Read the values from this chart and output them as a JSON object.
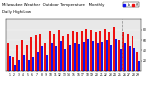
{
  "title": "Milwaukee Weather  Outdoor Temperature   Monthly",
  "days": [
    1,
    2,
    3,
    4,
    5,
    6,
    7,
    8,
    9,
    10,
    11,
    12,
    13,
    14,
    15,
    16,
    17,
    18,
    19,
    20,
    21,
    22,
    23,
    24,
    25,
    26,
    27,
    28,
    29
  ],
  "highs": [
    55,
    28,
    50,
    60,
    50,
    65,
    70,
    72,
    55,
    78,
    72,
    80,
    68,
    72,
    78,
    75,
    78,
    82,
    80,
    76,
    78,
    82,
    75,
    85,
    60,
    75,
    72,
    68,
    38
  ],
  "lows": [
    30,
    12,
    22,
    32,
    22,
    28,
    38,
    48,
    32,
    55,
    48,
    58,
    42,
    50,
    55,
    52,
    56,
    62,
    58,
    54,
    56,
    60,
    50,
    62,
    42,
    54,
    48,
    45,
    20
  ],
  "high_color": "#ee1111",
  "low_color": "#1111ee",
  "bg_color": "#ffffff",
  "plot_bg": "#e8e8e8",
  "vline_x": 24.5,
  "ylim": [
    0,
    100
  ],
  "yticks": [
    20,
    40,
    60,
    80
  ],
  "bar_width": 0.42
}
